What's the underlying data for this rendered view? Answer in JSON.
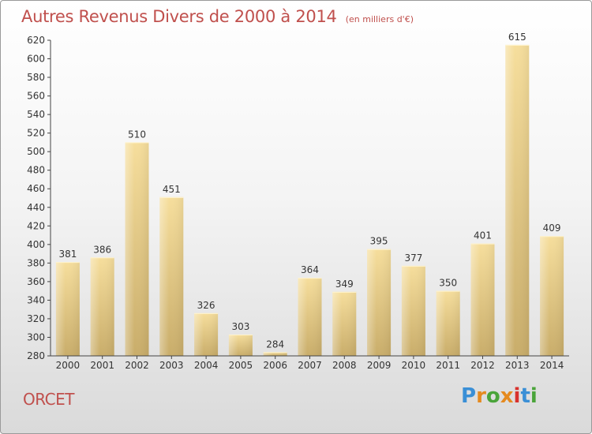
{
  "chart_data": {
    "type": "bar",
    "title": "Autres Revenus Divers de 2000 à 2014",
    "subtitle": "(en milliers d'€)",
    "categories": [
      "2000",
      "2001",
      "2002",
      "2003",
      "2004",
      "2005",
      "2006",
      "2007",
      "2008",
      "2009",
      "2010",
      "2011",
      "2012",
      "2013",
      "2014"
    ],
    "values": [
      381,
      386,
      510,
      451,
      326,
      303,
      284,
      364,
      349,
      395,
      377,
      350,
      401,
      615,
      409
    ],
    "ylim": [
      280,
      620
    ],
    "yticks": [
      280,
      300,
      320,
      340,
      360,
      380,
      400,
      420,
      440,
      460,
      480,
      500,
      520,
      540,
      560,
      580,
      600,
      620
    ],
    "grid": false,
    "data_labels": true,
    "bar_color": "#e8cc84"
  },
  "footer": {
    "place": "ORCET",
    "logo": "Proxiti",
    "logo_colors": [
      "#3a8fd6",
      "#e58a1f",
      "#4aa43a",
      "#e58a1f",
      "#d8322d",
      "#3a8fd6",
      "#4aa43a"
    ]
  },
  "colors": {
    "title": "#c0504d",
    "axis": "#333333"
  }
}
